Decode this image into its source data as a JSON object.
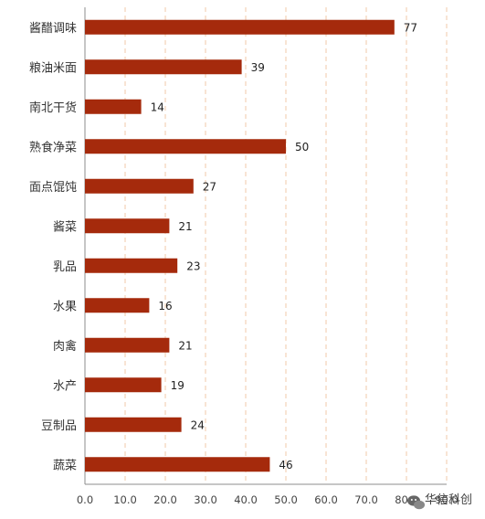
{
  "chart_data": {
    "type": "bar",
    "orientation": "horizontal",
    "categories": [
      "酱醋调味",
      "粮油米面",
      "南北干货",
      "熟食净菜",
      "面点馄饨",
      "酱菜",
      "乳品",
      "水果",
      "肉禽",
      "水产",
      "豆制品",
      "蔬菜"
    ],
    "values": [
      77,
      39,
      14,
      50,
      27,
      21,
      23,
      16,
      21,
      19,
      24,
      46
    ],
    "x_ticks": [
      "0.0",
      "10.0",
      "20.0",
      "30.0",
      "40.0",
      "50.0",
      "60.0",
      "70.0",
      "80.0",
      "90.0"
    ],
    "xlim": [
      0,
      90
    ],
    "grid": "vertical dashed",
    "bar_color": "#a52a0c",
    "grid_color": "#f2c9a8",
    "title": "",
    "xlabel": "",
    "ylabel": ""
  },
  "watermark": {
    "text": "华信科创",
    "icon": "wechat-icon"
  }
}
